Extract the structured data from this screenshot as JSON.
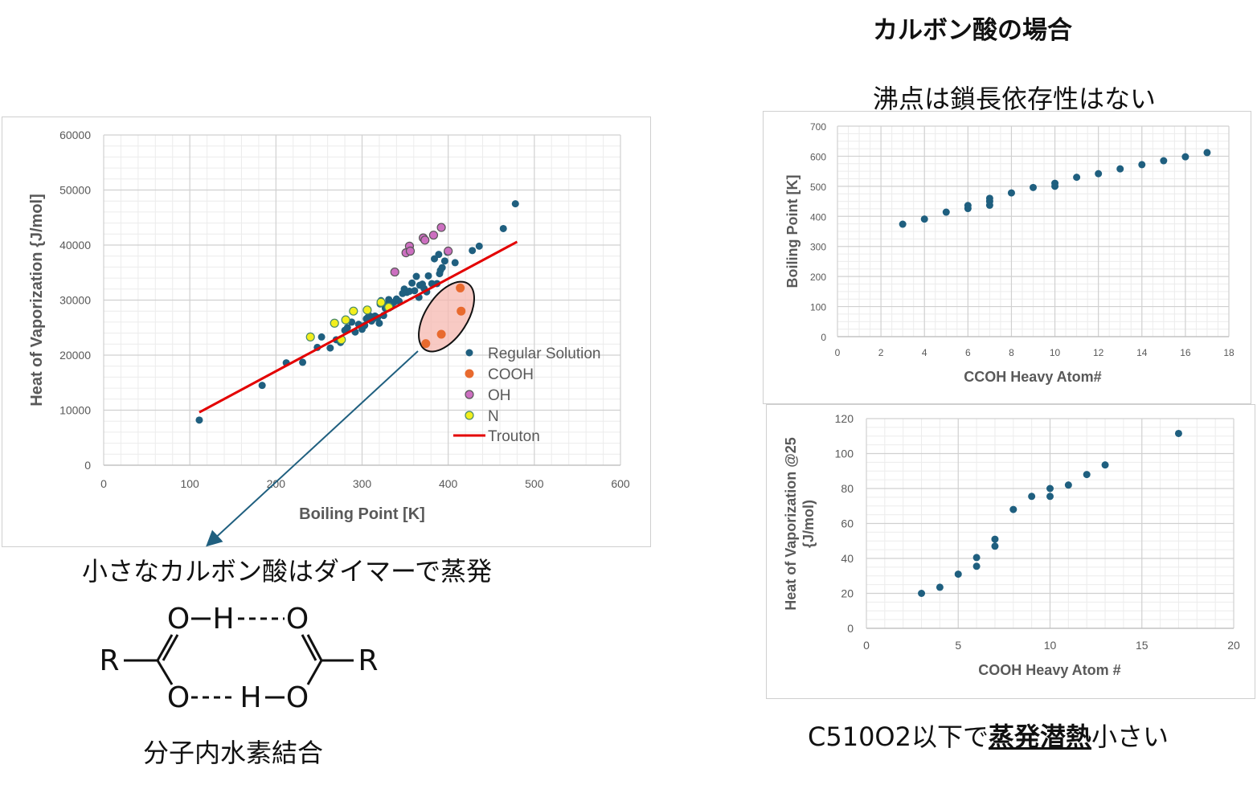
{
  "header": {
    "title": "カルボン酸の場合",
    "subtitle": "沸点は鎖長依存性はない"
  },
  "captions": {
    "dimer": "小さなカルボン酸はダイマーで蒸発",
    "hbond": "分子内水素結合",
    "bottom_prefix": "C510O2以下で",
    "bottom_emphasis": "蒸発潜熱",
    "bottom_suffix": "小さい"
  },
  "structure": {
    "labels": [
      "R",
      "O",
      "H",
      "O",
      "O",
      "H",
      "O",
      "R"
    ],
    "bond_top": "O–H----O",
    "bond_bottom": "O----H–O"
  },
  "colors": {
    "regular": "#1f5f7f",
    "cooh": "#e86a2e",
    "oh": "#cc6fc0",
    "n": "#f2ee1d",
    "trouton": "#e30000",
    "arrow": "#1f5f7f",
    "highlight": "#f6b8b0"
  },
  "chart_data": [
    {
      "type": "scatter",
      "xlabel": "Boiling Point [K]",
      "ylabel": "Heat of Vaporization {J/mol]",
      "xlim": [
        0,
        600
      ],
      "ylim": [
        0,
        60000
      ],
      "xticks": [
        0,
        100,
        200,
        300,
        400,
        500,
        600
      ],
      "yticks": [
        0,
        10000,
        20000,
        30000,
        40000,
        50000,
        60000
      ],
      "grid": true,
      "legend_position": "bottom-right",
      "series": [
        {
          "name": "Regular Solution",
          "points": [
            [
              111,
              8200
            ],
            [
              184,
              14500
            ],
            [
              212,
              18600
            ],
            [
              231,
              18700
            ],
            [
              248,
              21400
            ],
            [
              253,
              23300
            ],
            [
              263,
              21300
            ],
            [
              270,
              22800
            ],
            [
              275,
              22300
            ],
            [
              280,
              24500
            ],
            [
              283,
              25000
            ],
            [
              288,
              26000
            ],
            [
              292,
              24200
            ],
            [
              296,
              25600
            ],
            [
              300,
              24700
            ],
            [
              303,
              25400
            ],
            [
              305,
              26600
            ],
            [
              307,
              26900
            ],
            [
              309,
              27100
            ],
            [
              311,
              26200
            ],
            [
              313,
              26600
            ],
            [
              315,
              27100
            ],
            [
              318,
              26800
            ],
            [
              320,
              25800
            ],
            [
              321,
              29300
            ],
            [
              322,
              29900
            ],
            [
              325,
              27200
            ],
            [
              327,
              28500
            ],
            [
              329,
              29200
            ],
            [
              331,
              30100
            ],
            [
              334,
              28800
            ],
            [
              337,
              29600
            ],
            [
              340,
              30200
            ],
            [
              343,
              29800
            ],
            [
              347,
              31200
            ],
            [
              349,
              32000
            ],
            [
              352,
              31400
            ],
            [
              355,
              31600
            ],
            [
              358,
              33100
            ],
            [
              361,
              31700
            ],
            [
              363,
              34300
            ],
            [
              366,
              30500
            ],
            [
              367,
              32700
            ],
            [
              370,
              32900
            ],
            [
              372,
              32100
            ],
            [
              375,
              31500
            ],
            [
              377,
              34400
            ],
            [
              381,
              33000
            ],
            [
              384,
              37500
            ],
            [
              387,
              33000
            ],
            [
              389,
              38300
            ],
            [
              390,
              34800
            ],
            [
              391,
              35400
            ],
            [
              393,
              35900
            ],
            [
              396,
              37100
            ],
            [
              399,
              38700
            ],
            [
              408,
              36800
            ],
            [
              428,
              39000
            ],
            [
              436,
              39800
            ],
            [
              464,
              43000
            ],
            [
              478,
              47500
            ]
          ]
        },
        {
          "name": "COOH",
          "points": [
            [
              374,
              22100
            ],
            [
              392,
              23800
            ],
            [
              415,
              28000
            ],
            [
              414,
              32200
            ]
          ]
        },
        {
          "name": "OH",
          "points": [
            [
              338,
              35100
            ],
            [
              351,
              38600
            ],
            [
              355,
              39800
            ],
            [
              356,
              38900
            ],
            [
              371,
              41300
            ],
            [
              373,
              40900
            ],
            [
              383,
              41800
            ],
            [
              392,
              43200
            ],
            [
              400,
              38900
            ]
          ]
        },
        {
          "name": "N",
          "points": [
            [
              240,
              23300
            ],
            [
              268,
              25800
            ],
            [
              276,
              22800
            ],
            [
              281,
              26400
            ],
            [
              290,
              28000
            ],
            [
              306,
              28200
            ],
            [
              322,
              29600
            ],
            [
              331,
              28700
            ]
          ]
        },
        {
          "name": "Trouton",
          "type": "line",
          "points": [
            [
              111,
              9600
            ],
            [
              480,
              40600
            ]
          ]
        }
      ]
    },
    {
      "type": "scatter",
      "xlabel": "CCOH  Heavy Atom#",
      "ylabel": "Boiling Point [K]",
      "xlim": [
        0,
        18
      ],
      "ylim": [
        0,
        700
      ],
      "xticks": [
        0,
        2,
        4,
        6,
        8,
        10,
        12,
        14,
        16,
        18
      ],
      "yticks": [
        0,
        100,
        200,
        300,
        400,
        500,
        600,
        700
      ],
      "grid": true,
      "series": [
        {
          "points": [
            [
              3,
              374
            ],
            [
              4,
              391
            ],
            [
              5,
              414
            ],
            [
              6,
              426
            ],
            [
              6,
              436
            ],
            [
              7,
              437
            ],
            [
              7,
              450
            ],
            [
              7,
              460
            ],
            [
              8,
              478
            ],
            [
              9,
              496
            ],
            [
              10,
              500
            ],
            [
              10,
              510
            ],
            [
              11,
              530
            ],
            [
              12,
              542
            ],
            [
              13,
              558
            ],
            [
              14,
              572
            ],
            [
              15,
              585
            ],
            [
              16,
              598
            ],
            [
              17,
              612
            ]
          ]
        }
      ]
    },
    {
      "type": "scatter",
      "xlabel": "COOH Heavy Atom #",
      "ylabel": "Heat of Vaporization @25 {J/mol)",
      "xlim": [
        0,
        20
      ],
      "ylim": [
        0,
        120
      ],
      "xticks": [
        0,
        5,
        10,
        15,
        20
      ],
      "yticks": [
        0,
        20,
        40,
        60,
        80,
        100,
        120
      ],
      "grid": true,
      "series": [
        {
          "points": [
            [
              3,
              20
            ],
            [
              4,
              23.5
            ],
            [
              5,
              31
            ],
            [
              6,
              35.5
            ],
            [
              6,
              40.5
            ],
            [
              7,
              47
            ],
            [
              7,
              51
            ],
            [
              8,
              68
            ],
            [
              9,
              75.5
            ],
            [
              10,
              75.5
            ],
            [
              10,
              80
            ],
            [
              11,
              82
            ],
            [
              12,
              88
            ],
            [
              13,
              93.5
            ],
            [
              17,
              111.5
            ]
          ]
        }
      ]
    }
  ]
}
